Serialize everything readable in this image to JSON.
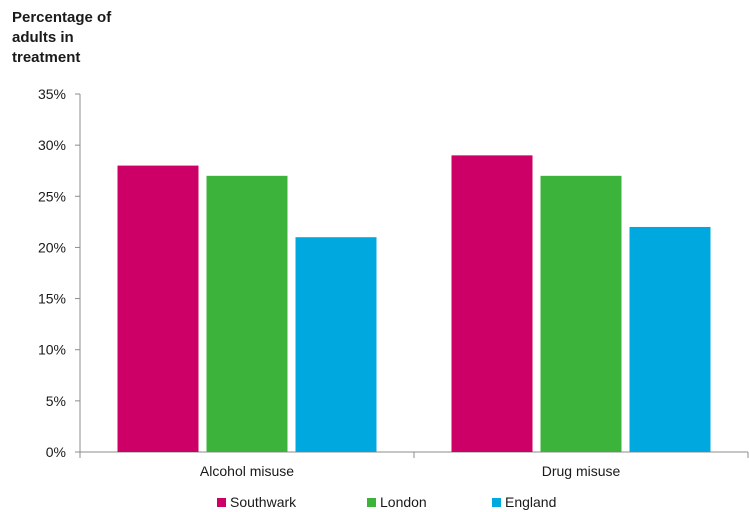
{
  "chart_data": {
    "type": "bar",
    "title": "",
    "ylabel_lines": [
      "Percentage of",
      "adults in",
      "treatment"
    ],
    "xlabel": "",
    "categories": [
      "Alcohol misuse",
      "Drug misuse"
    ],
    "series": [
      {
        "name": "Southwark",
        "color": "#cc0066",
        "values": [
          28,
          29
        ]
      },
      {
        "name": "London",
        "color": "#3cb43c",
        "values": [
          27,
          27
        ]
      },
      {
        "name": "England",
        "color": "#00a8e0",
        "values": [
          21,
          22
        ]
      }
    ],
    "ylim": [
      0,
      35
    ],
    "yticks": [
      0,
      5,
      10,
      15,
      20,
      25,
      30,
      35
    ],
    "ytick_labels": [
      "0%",
      "5%",
      "10%",
      "15%",
      "20%",
      "25%",
      "30%",
      "35%"
    ],
    "grid": false,
    "legend_position": "bottom"
  }
}
